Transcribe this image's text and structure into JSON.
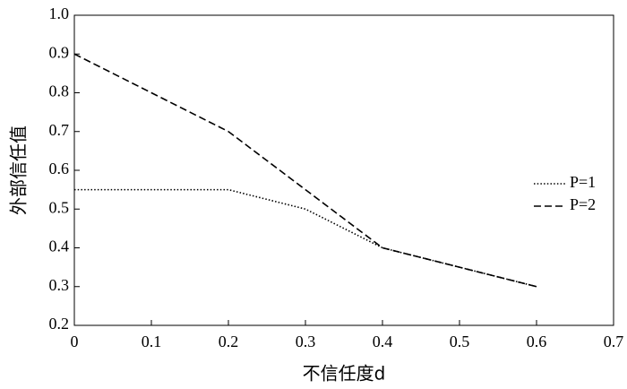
{
  "chart_data": {
    "type": "line",
    "x_label": "不信任度d",
    "y_label": "外部信任值",
    "x": [
      0,
      0.1,
      0.2,
      0.3,
      0.4,
      0.5,
      0.6
    ],
    "series": [
      {
        "name": "P=1",
        "color": "#000000",
        "dash": "dotted",
        "values": [
          0.55,
          0.55,
          0.55,
          0.5,
          0.4,
          0.35,
          0.3
        ]
      },
      {
        "name": "P=2",
        "color": "#000000",
        "dash": "dashed",
        "values": [
          0.9,
          0.8,
          0.7,
          0.55,
          0.4,
          0.35,
          0.3
        ]
      }
    ],
    "xlim": [
      0,
      0.7
    ],
    "xticks": [
      0,
      0.1,
      0.2,
      0.3,
      0.4,
      0.5,
      0.6,
      0.7
    ],
    "ylim": [
      0.2,
      1
    ],
    "yticks": [
      0.2,
      0.3,
      0.4,
      0.5,
      0.6,
      0.7,
      0.8,
      0.9,
      {
        "value": 1,
        "label": "1.0"
      }
    ],
    "grid": false,
    "legend": "right"
  }
}
